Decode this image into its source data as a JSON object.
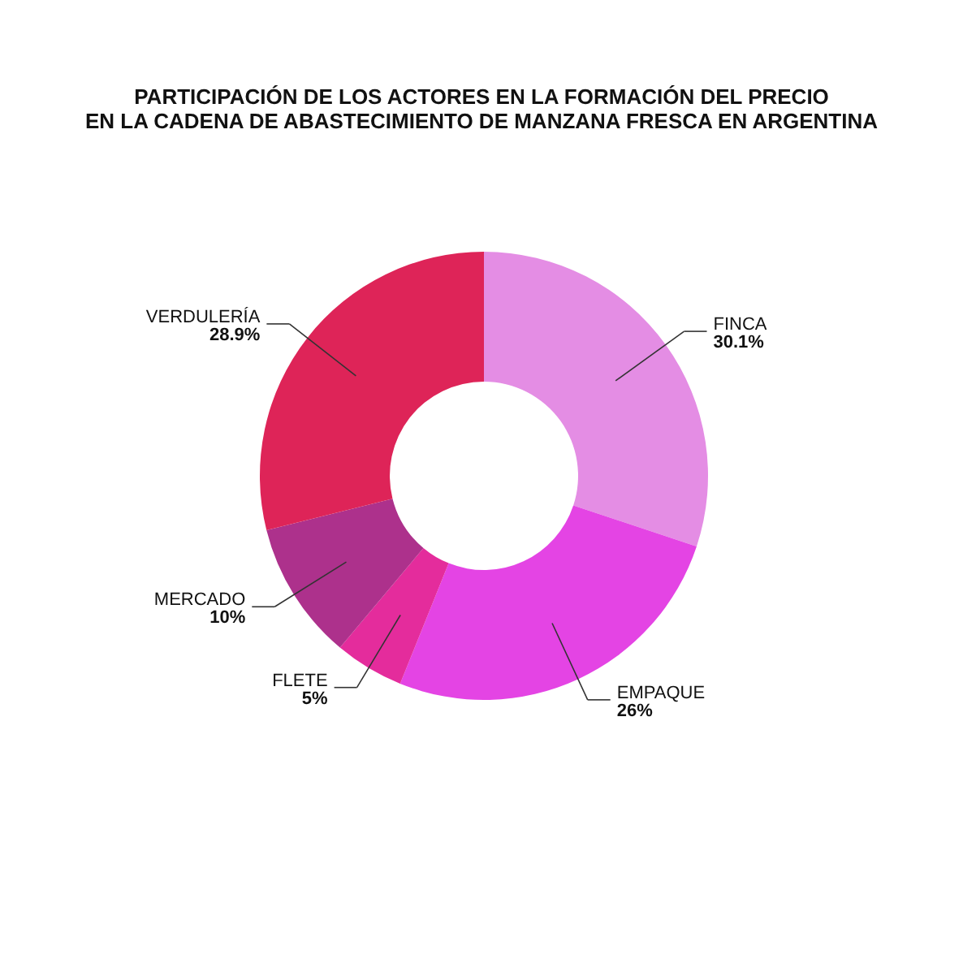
{
  "chart_data": {
    "type": "donut",
    "title": [
      "PARTICIPACIÓN DE LOS ACTORES EN LA FORMACIÓN DEL PRECIO",
      "EN LA CADENA DE ABASTECIMIENTO DE MANZANA FRESCA EN ARGENTINA"
    ],
    "categories": [
      "FINCA",
      "EMPAQUE",
      "FLETE",
      "MERCADO",
      "VERDULERÍA"
    ],
    "values": [
      30.1,
      26,
      5,
      10,
      28.9
    ],
    "value_labels": [
      "30.1%",
      "26%",
      "5%",
      "10%",
      "28.9%"
    ],
    "colors": [
      "#e48de4",
      "#e444e4",
      "#e42c9c",
      "#ad318c",
      "#de2458"
    ],
    "legend": false
  }
}
